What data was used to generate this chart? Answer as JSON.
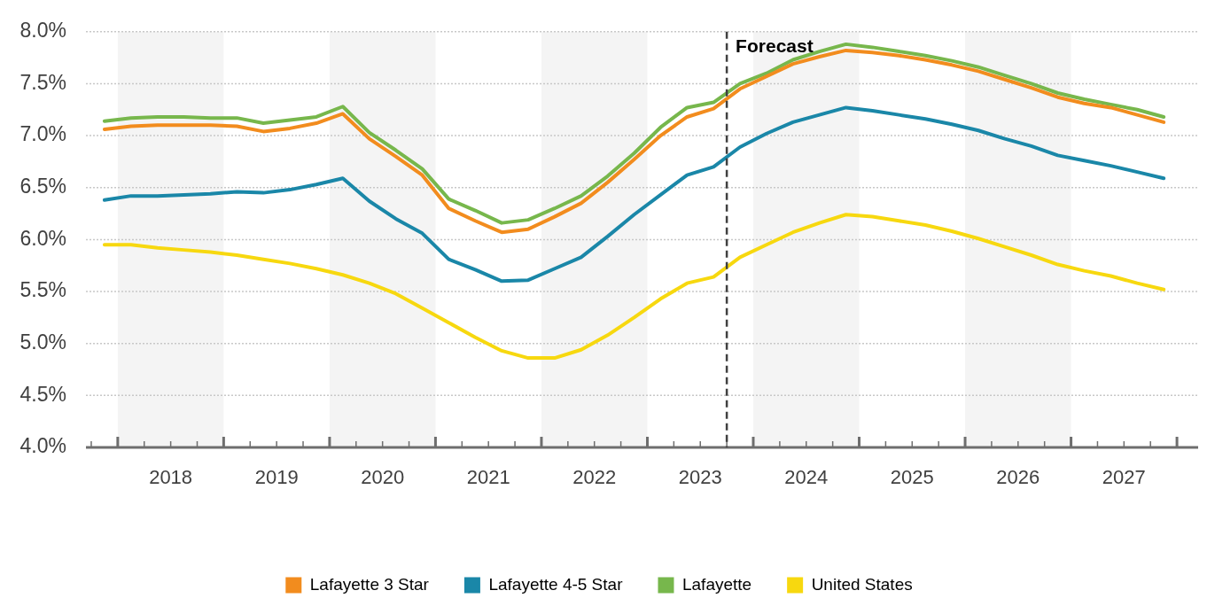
{
  "chart_data": {
    "type": "line",
    "x": [
      2017.875,
      2018.125,
      2018.375,
      2018.625,
      2018.875,
      2019.125,
      2019.375,
      2019.625,
      2019.875,
      2020.125,
      2020.375,
      2020.625,
      2020.875,
      2021.125,
      2021.375,
      2021.625,
      2021.875,
      2022.125,
      2022.375,
      2022.625,
      2022.875,
      2023.125,
      2023.375,
      2023.625,
      2023.875,
      2024.125,
      2024.375,
      2024.625,
      2024.875,
      2025.125,
      2025.375,
      2025.625,
      2025.875,
      2026.125,
      2026.375,
      2026.625,
      2026.875,
      2027.125,
      2027.375,
      2027.625,
      2027.875
    ],
    "series": [
      {
        "name": "Lafayette 3 Star",
        "color": "#f28c1e",
        "values": [
          7.06,
          7.09,
          7.1,
          7.1,
          7.1,
          7.09,
          7.04,
          7.07,
          7.12,
          7.21,
          6.97,
          6.8,
          6.62,
          6.3,
          6.18,
          6.07,
          6.1,
          6.22,
          6.35,
          6.55,
          6.77,
          7.0,
          7.18,
          7.26,
          7.45,
          7.57,
          7.69,
          7.76,
          7.82,
          7.8,
          7.77,
          7.73,
          7.68,
          7.62,
          7.54,
          7.46,
          7.37,
          7.31,
          7.27,
          7.2,
          7.13
        ]
      },
      {
        "name": "Lafayette 4-5 Star",
        "color": "#1a87a8",
        "values": [
          6.38,
          6.42,
          6.42,
          6.43,
          6.44,
          6.46,
          6.45,
          6.48,
          6.53,
          6.59,
          6.37,
          6.2,
          6.06,
          5.81,
          5.71,
          5.6,
          5.61,
          5.72,
          5.83,
          6.03,
          6.24,
          6.43,
          6.62,
          6.7,
          6.89,
          7.02,
          7.13,
          7.2,
          7.27,
          7.24,
          7.2,
          7.16,
          7.11,
          7.05,
          6.97,
          6.9,
          6.81,
          6.76,
          6.71,
          6.65,
          6.59
        ]
      },
      {
        "name": "Lafayette",
        "color": "#77b74c",
        "values": [
          7.14,
          7.17,
          7.18,
          7.18,
          7.17,
          7.17,
          7.12,
          7.15,
          7.18,
          7.28,
          7.03,
          6.86,
          6.68,
          6.39,
          6.28,
          6.16,
          6.19,
          6.3,
          6.42,
          6.61,
          6.83,
          7.08,
          7.27,
          7.32,
          7.5,
          7.6,
          7.73,
          7.81,
          7.88,
          7.85,
          7.81,
          7.77,
          7.72,
          7.66,
          7.58,
          7.5,
          7.41,
          7.35,
          7.3,
          7.25,
          7.18
        ]
      },
      {
        "name": "United States",
        "color": "#f7d80f",
        "values": [
          5.95,
          5.95,
          5.92,
          5.9,
          5.88,
          5.85,
          5.81,
          5.77,
          5.72,
          5.66,
          5.58,
          5.48,
          5.34,
          5.2,
          5.06,
          4.93,
          4.86,
          4.86,
          4.94,
          5.08,
          5.25,
          5.43,
          5.58,
          5.64,
          5.83,
          5.95,
          6.07,
          6.16,
          6.24,
          6.22,
          6.18,
          6.14,
          6.08,
          6.01,
          5.93,
          5.85,
          5.76,
          5.7,
          5.65,
          5.58,
          5.52
        ]
      }
    ],
    "xlim": [
      2017.7,
      2028.2
    ],
    "xticks": [
      {
        "value": 2017.75,
        "label": null
      },
      {
        "value": 2018,
        "label": null
      },
      {
        "value": 2018.25,
        "label": null
      },
      {
        "value": 2018.5,
        "label": "2018"
      },
      {
        "value": 2018.75,
        "label": null
      },
      {
        "value": 2019,
        "label": null
      },
      {
        "value": 2019.25,
        "label": null
      },
      {
        "value": 2019.5,
        "label": "2019"
      },
      {
        "value": 2019.75,
        "label": null
      },
      {
        "value": 2020,
        "label": null
      },
      {
        "value": 2020.25,
        "label": null
      },
      {
        "value": 2020.5,
        "label": "2020"
      },
      {
        "value": 2020.75,
        "label": null
      },
      {
        "value": 2021,
        "label": null
      },
      {
        "value": 2021.25,
        "label": null
      },
      {
        "value": 2021.5,
        "label": "2021"
      },
      {
        "value": 2021.75,
        "label": null
      },
      {
        "value": 2022,
        "label": null
      },
      {
        "value": 2022.25,
        "label": null
      },
      {
        "value": 2022.5,
        "label": "2022"
      },
      {
        "value": 2022.75,
        "label": null
      },
      {
        "value": 2023,
        "label": null
      },
      {
        "value": 2023.25,
        "label": null
      },
      {
        "value": 2023.5,
        "label": "2023"
      },
      {
        "value": 2023.75,
        "label": null
      },
      {
        "value": 2024,
        "label": null
      },
      {
        "value": 2024.25,
        "label": null
      },
      {
        "value": 2024.5,
        "label": "2024"
      },
      {
        "value": 2024.75,
        "label": null
      },
      {
        "value": 2025,
        "label": null
      },
      {
        "value": 2025.25,
        "label": null
      },
      {
        "value": 2025.5,
        "label": "2025"
      },
      {
        "value": 2025.75,
        "label": null
      },
      {
        "value": 2026,
        "label": null
      },
      {
        "value": 2026.25,
        "label": null
      },
      {
        "value": 2026.5,
        "label": "2026"
      },
      {
        "value": 2026.75,
        "label": null
      },
      {
        "value": 2027,
        "label": null
      },
      {
        "value": 2027.25,
        "label": null
      },
      {
        "value": 2027.5,
        "label": "2027"
      },
      {
        "value": 2027.75,
        "label": null
      },
      {
        "value": 2028,
        "label": null
      }
    ],
    "ylim": [
      4,
      8
    ],
    "yticks": [
      {
        "value": 4,
        "label": "4.0%"
      },
      {
        "value": 4.5,
        "label": "4.5%"
      },
      {
        "value": 5,
        "label": "5.0%"
      },
      {
        "value": 5.5,
        "label": "5.5%"
      },
      {
        "value": 6,
        "label": "6.0%"
      },
      {
        "value": 6.5,
        "label": "6.5%"
      },
      {
        "value": 7,
        "label": "7.0%"
      },
      {
        "value": 7.5,
        "label": "7.5%"
      },
      {
        "value": 8,
        "label": "8.0%"
      }
    ],
    "grid": "y",
    "legend": "bottom",
    "marker": "none",
    "line_style": "solid",
    "ref_lines": [
      {
        "axis": "x",
        "value": 2023.75,
        "label": "Forecast",
        "color": "#404040",
        "line_style": "dashed"
      }
    ],
    "bands": [
      {
        "axis": "x",
        "from": 2018,
        "to": 2019,
        "color": "#f4f4f4"
      },
      {
        "axis": "x",
        "from": 2020,
        "to": 2021,
        "color": "#f4f4f4"
      },
      {
        "axis": "x",
        "from": 2022,
        "to": 2023,
        "color": "#f4f4f4"
      },
      {
        "axis": "x",
        "from": 2024,
        "to": 2025,
        "color": "#f4f4f4"
      },
      {
        "axis": "x",
        "from": 2026,
        "to": 2027,
        "color": "#f4f4f4"
      }
    ]
  }
}
